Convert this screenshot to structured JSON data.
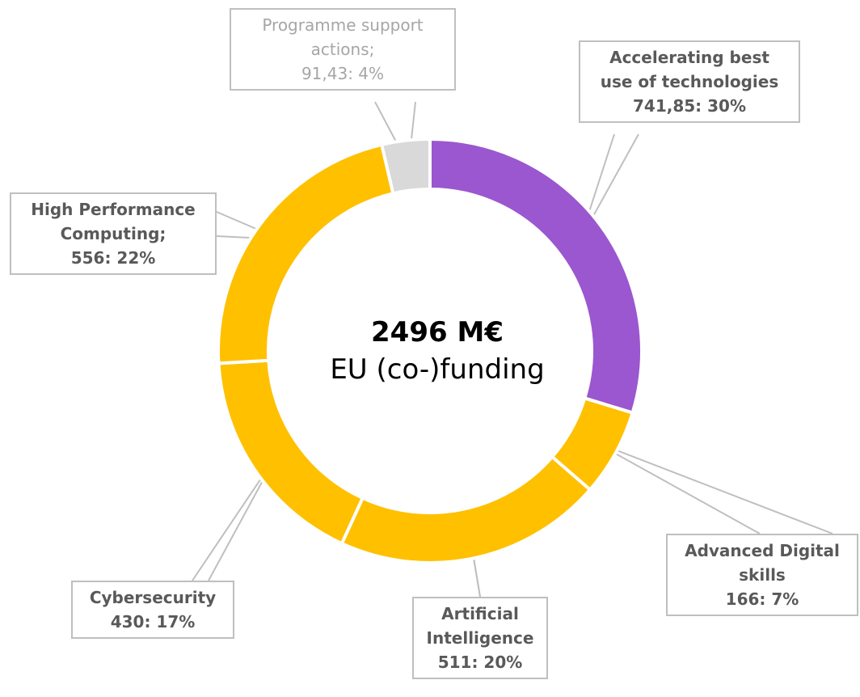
{
  "chart_data": {
    "type": "pie",
    "style": "donut",
    "center": {
      "total": "2496 M€",
      "caption": "EU (co-)funding"
    },
    "slices": [
      {
        "label": [
          "Accelerating best",
          "use of technologies"
        ],
        "value_text": "741,85: 30%",
        "value": 741.85,
        "percent": 30,
        "color": "#9b57cf"
      },
      {
        "label": [
          "Advanced Digital",
          "skills"
        ],
        "value_text": "166: 7%",
        "value": 166,
        "percent": 7,
        "color": "#ffc000"
      },
      {
        "label": [
          "Artificial",
          "Intelligence"
        ],
        "value_text": "511: 20%",
        "value": 511,
        "percent": 20,
        "color": "#ffc000"
      },
      {
        "label": [
          "Cybersecurity"
        ],
        "value_text": "430: 17%",
        "value": 430,
        "percent": 17,
        "color": "#ffc000"
      },
      {
        "label": [
          "High Performance",
          "Computing;"
        ],
        "value_text": "556: 22%",
        "value": 556,
        "percent": 22,
        "color": "#ffc000"
      },
      {
        "label": [
          "Programme support",
          "actions;"
        ],
        "value_text": "91,43: 4%",
        "value": 91.43,
        "percent": 4,
        "color": "#d9d9d9"
      }
    ]
  }
}
